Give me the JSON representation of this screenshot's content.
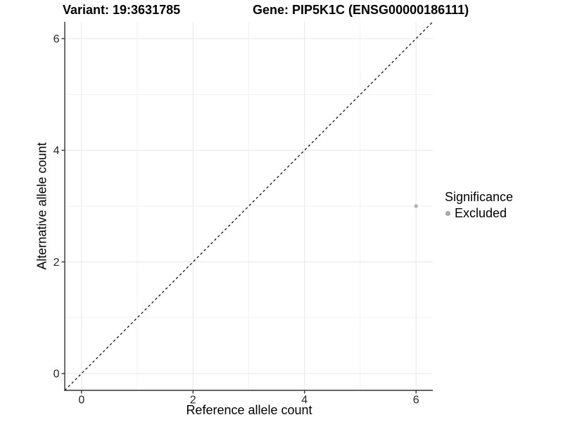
{
  "titles": {
    "variant": "Variant: 19:3631785",
    "gene": "Gene: PIP5K1C (ENSG00000186111)"
  },
  "axes": {
    "x_label": "Reference allele count",
    "y_label": "Alternative allele count"
  },
  "legend": {
    "title": "Significance",
    "items": [
      {
        "label": "Excluded",
        "color": "#a9a9a9"
      }
    ]
  },
  "colors": {
    "background": "#ffffff",
    "grid_major": "#e6e6e6",
    "grid_minor": "#f2f2f2",
    "axis_line": "#333333",
    "tick_mark": "#333333",
    "tick_text": "#262626",
    "identity_line": "#000000",
    "point": "#b0b0b0"
  },
  "chart_data": {
    "type": "scatter",
    "title": "Variant: 19:3631785 — Gene: PIP5K1C (ENSG00000186111)",
    "xlabel": "Reference allele count",
    "ylabel": "Alternative allele count",
    "xlim": [
      -0.3,
      6.3
    ],
    "ylim": [
      -0.3,
      6.3
    ],
    "x_ticks": [
      0,
      2,
      4,
      6
    ],
    "y_ticks": [
      0,
      2,
      4,
      6
    ],
    "x_minor_ticks": [
      1,
      3,
      5
    ],
    "y_minor_ticks": [
      1,
      3,
      5
    ],
    "grid": true,
    "legend_position": "right",
    "series": [
      {
        "name": "Excluded",
        "color": "#b0b0b0",
        "points": [
          {
            "x": 6,
            "y": 3
          }
        ]
      }
    ],
    "reference_line": {
      "kind": "identity",
      "equation": "y = x",
      "style": "dashed",
      "color": "#000000"
    }
  }
}
